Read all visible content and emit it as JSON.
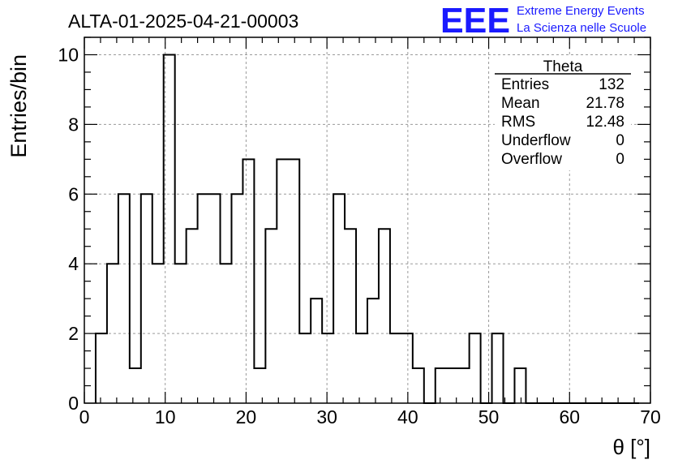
{
  "title": "ALTA-01-2025-04-21-00003",
  "logo": {
    "mark": "EEE",
    "line1": "Extreme Energy Events",
    "line2": "La Scienza nelle Scuole",
    "color": "#1a1aff"
  },
  "stats": {
    "name": "Theta",
    "rows": [
      {
        "label": "Entries",
        "value": "132"
      },
      {
        "label": "Mean",
        "value": "21.78"
      },
      {
        "label": "RMS",
        "value": "12.48"
      },
      {
        "label": "Underflow",
        "value": "0"
      },
      {
        "label": "Overflow",
        "value": "0"
      }
    ]
  },
  "chart_data": {
    "type": "bar",
    "style": "step-histogram",
    "title": "ALTA-01-2025-04-21-00003",
    "xlabel": "θ [°]",
    "ylabel": "Entries/bin",
    "xlim": [
      0,
      70
    ],
    "ylim": [
      0,
      10.5
    ],
    "xticks": [
      "0",
      "10",
      "20",
      "30",
      "40",
      "50",
      "60",
      "70"
    ],
    "yticks": [
      "0",
      "2",
      "4",
      "6",
      "8",
      "10"
    ],
    "grid": true,
    "legend": "none",
    "bin_width": 1.4,
    "bin_start": 1.4,
    "values": [
      2,
      4,
      6,
      1,
      6,
      4,
      10,
      4,
      5,
      6,
      6,
      4,
      6,
      7,
      1,
      5,
      7,
      7,
      2,
      3,
      2,
      6,
      5,
      2,
      3,
      5,
      2,
      2,
      1,
      0,
      1,
      1,
      1,
      2,
      0,
      2,
      0,
      1,
      0,
      0,
      0,
      0,
      0,
      0,
      0,
      0,
      0,
      0
    ]
  }
}
